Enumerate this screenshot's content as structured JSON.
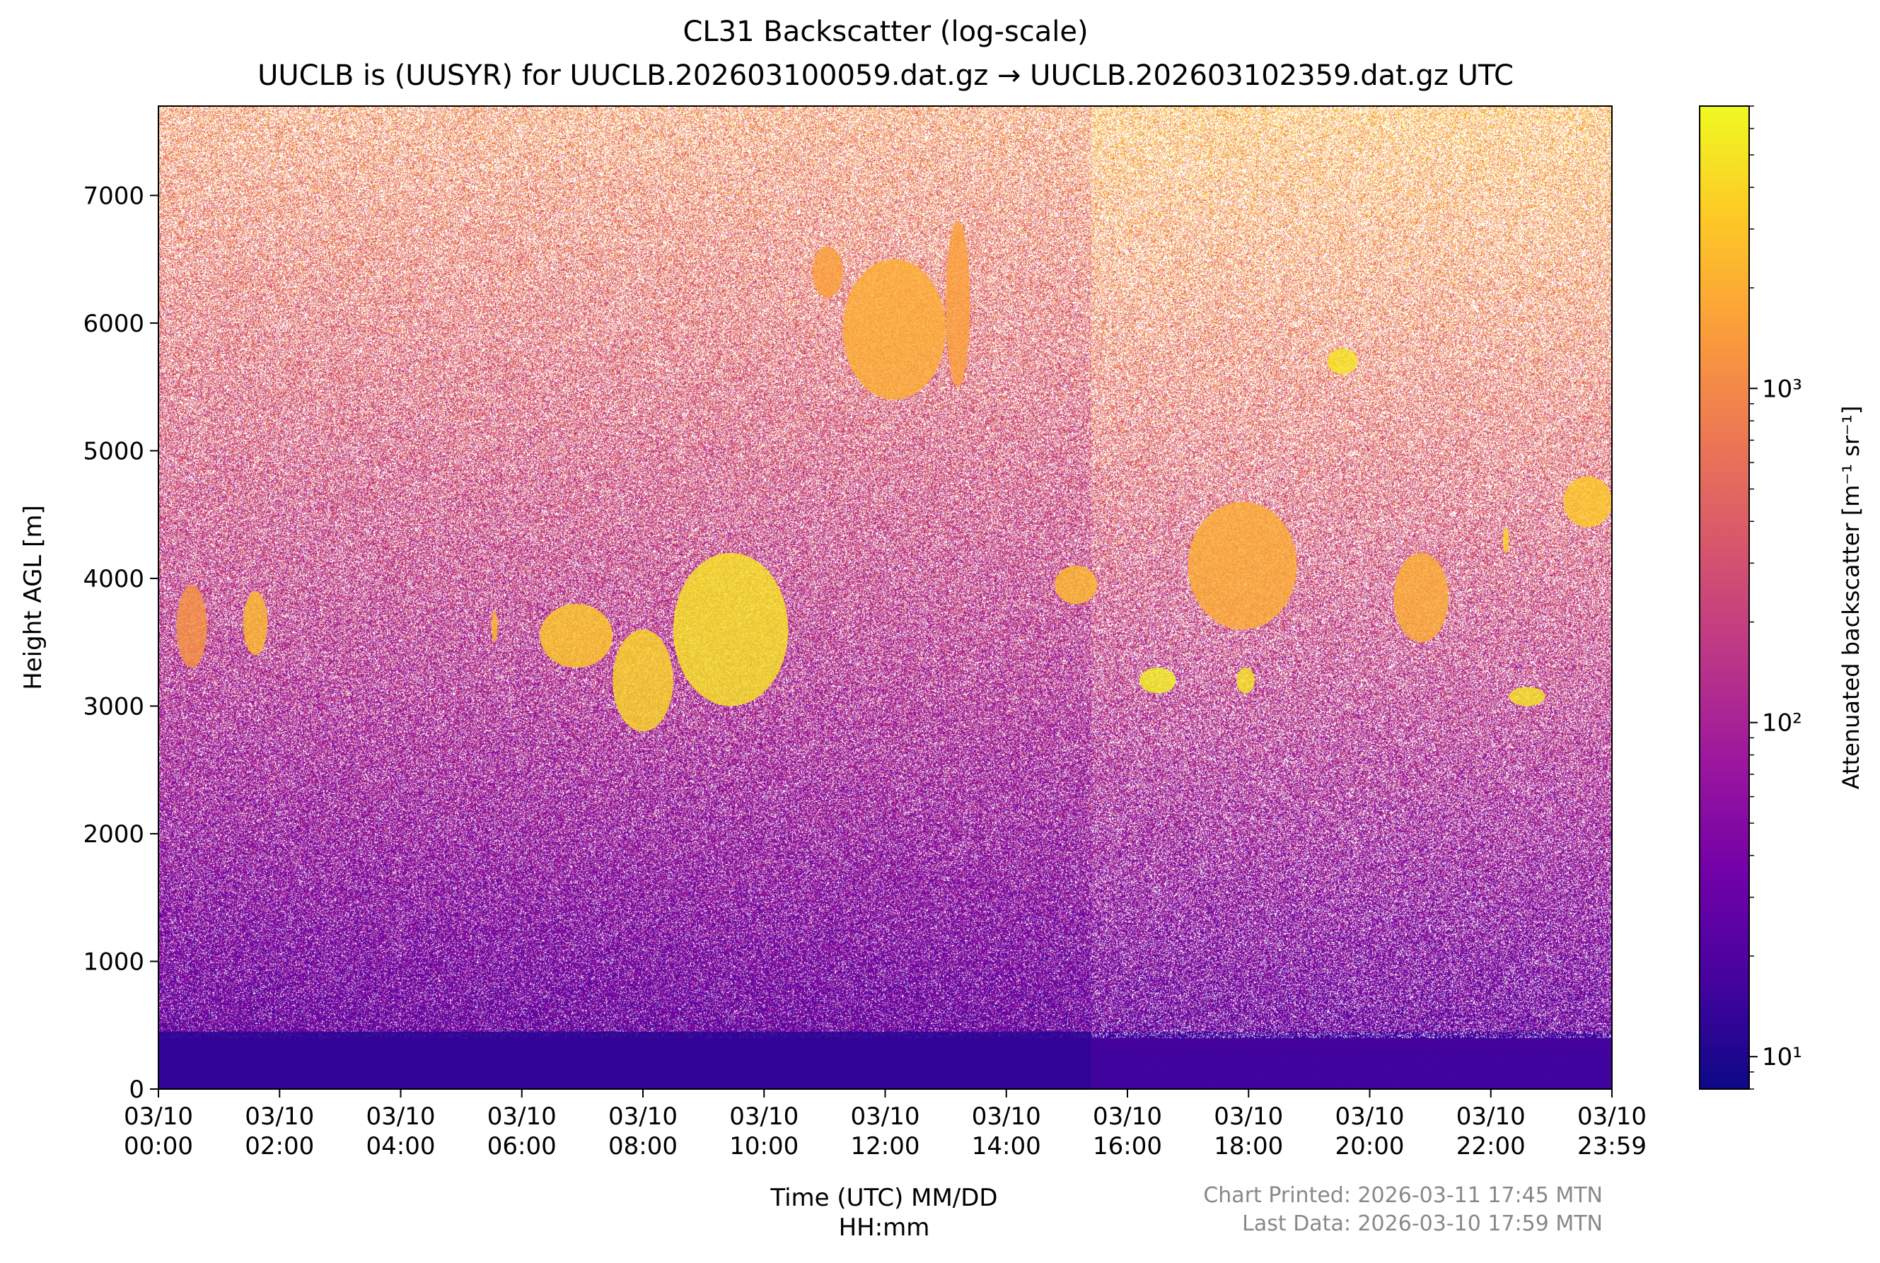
{
  "chart_data": {
    "type": "heatmap",
    "title": "CL31 Backscatter (log-scale)",
    "subtitle": "UUCLB is (UUSYR) for UUCLB.202603100059.dat.gz → UUCLB.202603102359.dat.gz UTC",
    "xlabel": [
      "Time (UTC) MM/DD",
      "HH:mm"
    ],
    "ylabel": "Height AGL [m]",
    "x_range_hours": [
      0,
      24
    ],
    "ylim": [
      0,
      7700
    ],
    "x_ticks": [
      {
        "hour": 0,
        "date": "03/10",
        "time": "00:00"
      },
      {
        "hour": 2,
        "date": "03/10",
        "time": "02:00"
      },
      {
        "hour": 4,
        "date": "03/10",
        "time": "04:00"
      },
      {
        "hour": 6,
        "date": "03/10",
        "time": "06:00"
      },
      {
        "hour": 8,
        "date": "03/10",
        "time": "08:00"
      },
      {
        "hour": 10,
        "date": "03/10",
        "time": "10:00"
      },
      {
        "hour": 12,
        "date": "03/10",
        "time": "12:00"
      },
      {
        "hour": 14,
        "date": "03/10",
        "time": "14:00"
      },
      {
        "hour": 16,
        "date": "03/10",
        "time": "16:00"
      },
      {
        "hour": 18,
        "date": "03/10",
        "time": "18:00"
      },
      {
        "hour": 20,
        "date": "03/10",
        "time": "20:00"
      },
      {
        "hour": 22,
        "date": "03/10",
        "time": "22:00"
      },
      {
        "hour": 24,
        "date": "03/10",
        "time": "23:59"
      }
    ],
    "y_ticks": [
      0,
      1000,
      2000,
      3000,
      4000,
      5000,
      6000,
      7000
    ],
    "colorbar": {
      "label": "Attenuated backscatter [m⁻¹ sr⁻¹]",
      "scale": "log",
      "range": [
        8,
        7000
      ],
      "ticks": [
        {
          "value": 10,
          "label": "10¹"
        },
        {
          "value": 100,
          "label": "10²"
        },
        {
          "value": 1000,
          "label": "10³"
        }
      ],
      "colormap": [
        "#0d0887",
        "#46039f",
        "#7201a8",
        "#9c179e",
        "#bd3786",
        "#d8576b",
        "#ed7953",
        "#fb9f3a",
        "#fdca26",
        "#f0f921"
      ]
    },
    "layers": [
      {
        "hour_start": 0,
        "hour_end": 15.4,
        "height_start": 0,
        "height_end": 450,
        "log_value": 1.1
      },
      {
        "hour_start": 15.4,
        "hour_end": 24,
        "height_start": 0,
        "height_end": 320,
        "log_value": 1.2
      }
    ],
    "cloud_features": [
      {
        "hour_start": 0.3,
        "hour_end": 0.8,
        "height_start": 3300,
        "height_end": 3950,
        "log_value": 3.1
      },
      {
        "hour_start": 1.4,
        "hour_end": 1.8,
        "height_start": 3400,
        "height_end": 3900,
        "log_value": 3.4
      },
      {
        "hour_start": 5.5,
        "hour_end": 5.6,
        "height_start": 3500,
        "height_end": 3750,
        "log_value": 3.4
      },
      {
        "hour_start": 6.3,
        "hour_end": 7.5,
        "height_start": 3300,
        "height_end": 3800,
        "log_value": 3.5
      },
      {
        "hour_start": 7.5,
        "hour_end": 8.5,
        "height_start": 2800,
        "height_end": 3600,
        "log_value": 3.6
      },
      {
        "hour_start": 8.5,
        "hour_end": 10.4,
        "height_start": 3000,
        "height_end": 4200,
        "log_value": 3.7
      },
      {
        "hour_start": 10.8,
        "hour_end": 11.3,
        "height_start": 6200,
        "height_end": 6600,
        "log_value": 3.2
      },
      {
        "hour_start": 11.3,
        "hour_end": 13.0,
        "height_start": 5400,
        "height_end": 6500,
        "log_value": 3.3
      },
      {
        "hour_start": 13.0,
        "hour_end": 13.4,
        "height_start": 5500,
        "height_end": 6800,
        "log_value": 3.2
      },
      {
        "hour_start": 14.8,
        "hour_end": 15.5,
        "height_start": 3800,
        "height_end": 4100,
        "log_value": 3.4
      },
      {
        "hour_start": 16.2,
        "hour_end": 16.8,
        "height_start": 3100,
        "height_end": 3300,
        "log_value": 3.8
      },
      {
        "hour_start": 17.0,
        "hour_end": 18.8,
        "height_start": 3600,
        "height_end": 4600,
        "log_value": 3.3
      },
      {
        "hour_start": 17.8,
        "hour_end": 18.1,
        "height_start": 3100,
        "height_end": 3300,
        "log_value": 3.7
      },
      {
        "hour_start": 19.3,
        "hour_end": 19.8,
        "height_start": 5600,
        "height_end": 5800,
        "log_value": 3.7
      },
      {
        "hour_start": 20.4,
        "hour_end": 21.3,
        "height_start": 3500,
        "height_end": 4200,
        "log_value": 3.3
      },
      {
        "hour_start": 22.2,
        "hour_end": 22.3,
        "height_start": 4200,
        "height_end": 4400,
        "log_value": 3.6
      },
      {
        "hour_start": 22.3,
        "hour_end": 22.9,
        "height_start": 3000,
        "height_end": 3150,
        "log_value": 3.7
      },
      {
        "hour_start": 23.2,
        "hour_end": 24,
        "height_start": 4400,
        "height_end": 4800,
        "log_value": 3.5
      }
    ]
  },
  "footer": {
    "printed": "Chart Printed: 2026-03-11 17:45 MTN",
    "last_data": "Last Data: 2026-03-10 17:59 MTN"
  }
}
